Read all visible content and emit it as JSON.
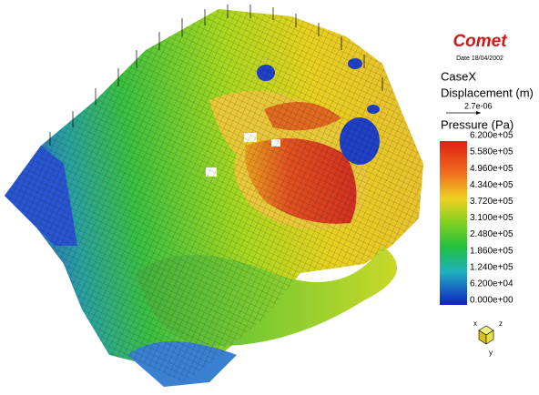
{
  "logo": "Comet",
  "date": "Date 18/04/2002",
  "case": "CaseX",
  "displacement": {
    "label": "Displacement (m)",
    "scale": "2.7e-06"
  },
  "pressure": {
    "label": "Pressure (Pa)",
    "levels": [
      "6.200e+05",
      "5.580e+05",
      "4.960e+05",
      "4.340e+05",
      "3.720e+05",
      "3.100e+05",
      "2.480e+05",
      "1.860e+05",
      "1.240e+05",
      "6.200e+04",
      "0.000e+00"
    ]
  },
  "axes": {
    "x": "x",
    "z": "z",
    "y": "y"
  }
}
